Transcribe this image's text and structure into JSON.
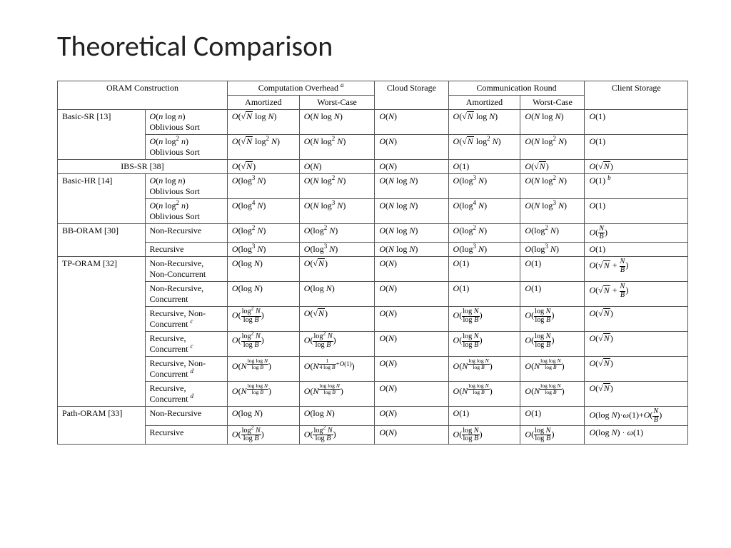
{
  "title": "Theoretical Comparison",
  "table": {
    "type": "table",
    "font_family": "Times New Roman",
    "font_size_pt": 12,
    "border_color": "#555555",
    "background_color": "#ffffff",
    "header": {
      "row1": {
        "oram_construction": "ORAM Construction",
        "comp_overhead": "Computation Overhead",
        "comp_overhead_note": "a",
        "cloud_storage": "Cloud Storage",
        "comm_round": "Communication Round",
        "client_storage": "Client Storage"
      },
      "row2": {
        "amortized": "Amortized",
        "worst_case": "Worst-Case",
        "amortized2": "Amortized",
        "worst_case2": "Worst-Case"
      }
    },
    "rows": [
      {
        "construction": "Basic-SR [13]",
        "variants": [
          {
            "variant": "O(n log n)\nOblivious Sort",
            "comp_amort": "O(√N log N)",
            "comp_worst": "O(N log N)",
            "cloud": "O(N)",
            "comm_amort": "O(√N log N)",
            "comm_worst": "O(N log N)",
            "client": "O(1)"
          },
          {
            "variant": "O(n log² n)\nOblivious Sort",
            "comp_amort": "O(√N log² N)",
            "comp_worst": "O(N log² N)",
            "cloud": "O(N)",
            "comm_amort": "O(√N log² N)",
            "comm_worst": "O(N log² N)",
            "client": "O(1)"
          }
        ]
      },
      {
        "construction": "IBS-SR [38]",
        "span_full": true,
        "variants": [
          {
            "variant": "",
            "comp_amort": "O(√N)",
            "comp_worst": "O(N)",
            "cloud": "O(N)",
            "comm_amort": "O(1)",
            "comm_worst": "O(√N)",
            "client": "O(√N)"
          }
        ]
      },
      {
        "construction": "Basic-HR [14]",
        "variants": [
          {
            "variant": "O(n log n)\nOblivious Sort",
            "comp_amort": "O(log³ N)",
            "comp_worst": "O(N log² N)",
            "cloud": "O(N log N)",
            "comm_amort": "O(log³ N)",
            "comm_worst": "O(N log² N)",
            "client": "O(1)",
            "client_note": "b"
          },
          {
            "variant": "O(n log² n)\nOblivious Sort",
            "comp_amort": "O(log⁴ N)",
            "comp_worst": "O(N log³ N)",
            "cloud": "O(N log N)",
            "comm_amort": "O(log⁴ N)",
            "comm_worst": "O(N log³ N)",
            "client": "O(1)"
          }
        ]
      },
      {
        "construction": "BB-ORAM [30]",
        "variants": [
          {
            "variant": "Non-Recursive",
            "comp_amort": "O(log² N)",
            "comp_worst": "O(log² N)",
            "cloud": "O(N log N)",
            "comm_amort": "O(log² N)",
            "comm_worst": "O(log² N)",
            "client": "O(N/B)"
          },
          {
            "variant": "Recursive",
            "comp_amort": "O(log³ N)",
            "comp_worst": "O(log³ N)",
            "cloud": "O(N log N)",
            "comm_amort": "O(log³ N)",
            "comm_worst": "O(log³ N)",
            "client": "O(1)"
          }
        ]
      },
      {
        "construction": "TP-ORAM [32]",
        "variants": [
          {
            "variant": "Non-Recursive,\nNon-Concurrent",
            "comp_amort": "O(log N)",
            "comp_worst": "O(√N)",
            "cloud": "O(N)",
            "comm_amort": "O(1)",
            "comm_worst": "O(1)",
            "client": "O(√N + N/B)"
          },
          {
            "variant": "Non-Recursive,\nConcurrent",
            "comp_amort": "O(log N)",
            "comp_worst": "O(log N)",
            "cloud": "O(N)",
            "comm_amort": "O(1)",
            "comm_worst": "O(1)",
            "client": "O(√N + N/B)"
          },
          {
            "variant": "Recursive, Non-\nConcurrent",
            "variant_note": "c",
            "comp_amort": "O(log²N/logB)",
            "comp_worst": "O(√N)",
            "cloud": "O(N)",
            "comm_amort": "O(logN/logB)",
            "comm_worst": "O(logN/logB)",
            "client": "O(√N)"
          },
          {
            "variant": "Recursive,\nConcurrent",
            "variant_note": "c",
            "comp_amort": "O(log²N/logB)",
            "comp_worst": "O(log²N/logB)",
            "cloud": "O(N)",
            "comm_amort": "O(logN/logB)",
            "comm_worst": "O(logN/logB)",
            "client": "O(√N)"
          },
          {
            "variant": "Recursive, Non-\nConcurrent",
            "variant_note": "d",
            "comp_amort": "O(N^(loglogN/logB))",
            "comp_worst": "O(N^(1/(4logB)+O(1)))",
            "cloud": "O(N)",
            "comm_amort": "O(N^(loglogN/logB))",
            "comm_worst": "O(N^(loglogN/logB))",
            "client": "O(√N)"
          },
          {
            "variant": "Recursive,\nConcurrent",
            "variant_note": "d",
            "comp_amort": "O(N^(loglogN/logB))",
            "comp_worst": "O(N^(loglogN/logB))",
            "cloud": "O(N)",
            "comm_amort": "O(N^(loglogN/logB))",
            "comm_worst": "O(N^(loglogN/logB))",
            "client": "O(√N)"
          }
        ]
      },
      {
        "construction": "Path-ORAM [33]",
        "variants": [
          {
            "variant": "Non-Recursive",
            "comp_amort": "O(log N)",
            "comp_worst": "O(log N)",
            "cloud": "O(N)",
            "comm_amort": "O(1)",
            "comm_worst": "O(1)",
            "client": "O(log N)·ω(1)+O(N/B)"
          },
          {
            "variant": "Recursive",
            "comp_amort": "O(log²N/logB)",
            "comp_worst": "O(log²N/logB)",
            "cloud": "O(N)",
            "comm_amort": "O(logN/logB)",
            "comm_worst": "O(logN/logB)",
            "client": "O(log N) · ω(1)"
          }
        ]
      }
    ]
  }
}
